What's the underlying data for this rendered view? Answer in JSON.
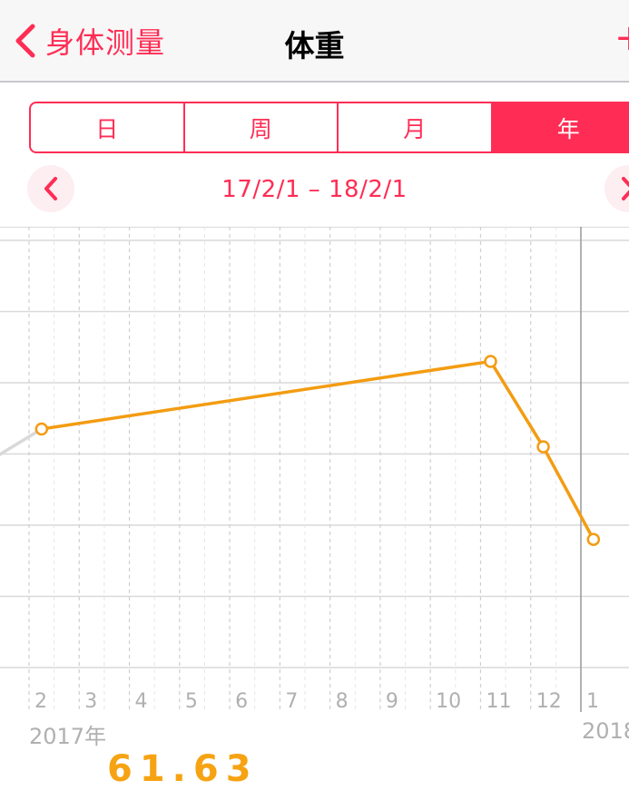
{
  "nav": {
    "back_label": "身体测量",
    "title": "体重",
    "add_glyph": "+"
  },
  "segments": [
    {
      "label": "日",
      "active": false
    },
    {
      "label": "周",
      "active": false
    },
    {
      "label": "月",
      "active": false
    },
    {
      "label": "年",
      "active": true
    }
  ],
  "range": {
    "text": "17/2/1 – 18/2/1",
    "prev_icon": "chevron-left-icon",
    "next_icon": "chevron-right-icon"
  },
  "chart_data": {
    "type": "line",
    "x_tick_labels": [
      "2",
      "3",
      "4",
      "5",
      "6",
      "7",
      "8",
      "9",
      "10",
      "11",
      "12",
      "1"
    ],
    "year_labels": [
      "2017年",
      "2018"
    ],
    "series": [
      {
        "color": "#f39c12",
        "points": [
          {
            "month": 2.25,
            "y": 3.35
          },
          {
            "month": 11.2,
            "y": 4.3
          },
          {
            "month": 12.25,
            "y": 3.1
          },
          {
            "month": 13.25,
            "y": 1.8
          }
        ]
      }
    ],
    "previous_segment": {
      "color": "#d9d9d9",
      "from": {
        "month": 1.2,
        "y": 2.9
      }
    },
    "y_gridlines": 6,
    "grid": true
  },
  "colors": {
    "accent": "#ff2d55",
    "line": "#f39c12",
    "grid": "#d9d9d9"
  },
  "footer_peek": "61.63"
}
